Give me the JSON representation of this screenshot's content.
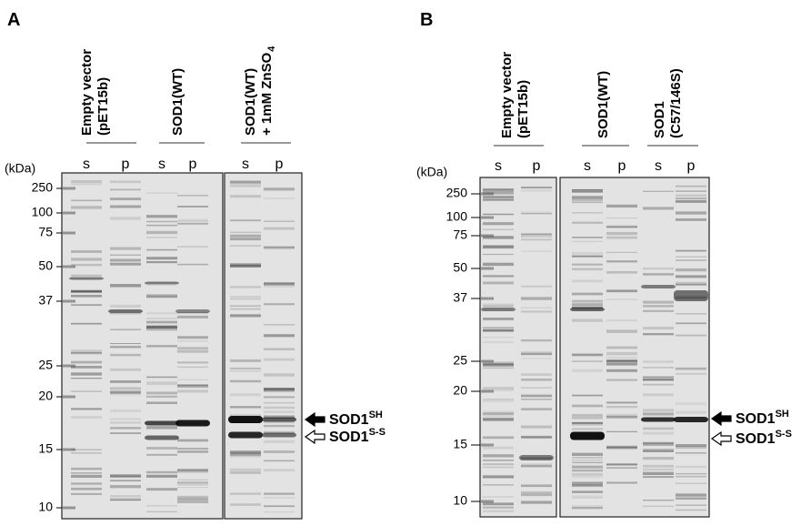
{
  "panels": [
    {
      "label": "A",
      "unit": "(kDa)",
      "markers": [
        "250",
        "100",
        "75",
        "50",
        "37",
        "25",
        "20",
        "15",
        "10"
      ],
      "groups": [
        {
          "lines": [
            {
              "text": "Empty vector"
            },
            {
              "text": "(pET15b)"
            }
          ],
          "lanes": [
            "s",
            "p"
          ]
        },
        {
          "lines": [
            {
              "text": "SOD1(WT)"
            }
          ],
          "lanes": [
            "s",
            "p"
          ]
        },
        {
          "lines": [
            {
              "text": "SOD1(WT)"
            },
            {
              "text": "+ 1mM ZnSO",
              "sub": "4"
            }
          ],
          "lanes": [
            "s",
            "p"
          ]
        }
      ],
      "annotations": [
        {
          "text": "SOD1",
          "sup": "SH"
        },
        {
          "text": "SOD1",
          "sup": "S-S"
        }
      ]
    },
    {
      "label": "B",
      "unit": "(kDa)",
      "markers": [
        "250",
        "100",
        "75",
        "50",
        "37",
        "25",
        "20",
        "15",
        "10"
      ],
      "groups": [
        {
          "lines": [
            {
              "text": "Empty vector"
            },
            {
              "text": "(pET15b)"
            }
          ],
          "lanes": [
            "s",
            "p"
          ]
        },
        {
          "lines": [
            {
              "text": "SOD1(WT)"
            }
          ],
          "lanes": [
            "s",
            "p"
          ]
        },
        {
          "lines": [
            {
              "text": "SOD1"
            },
            {
              "text": "(C57/146S)"
            }
          ],
          "lanes": [
            "s",
            "p"
          ]
        }
      ],
      "annotations": [
        {
          "text": "SOD1",
          "sup": "SH"
        },
        {
          "text": "SOD1",
          "sup": "S-S"
        }
      ]
    }
  ]
}
